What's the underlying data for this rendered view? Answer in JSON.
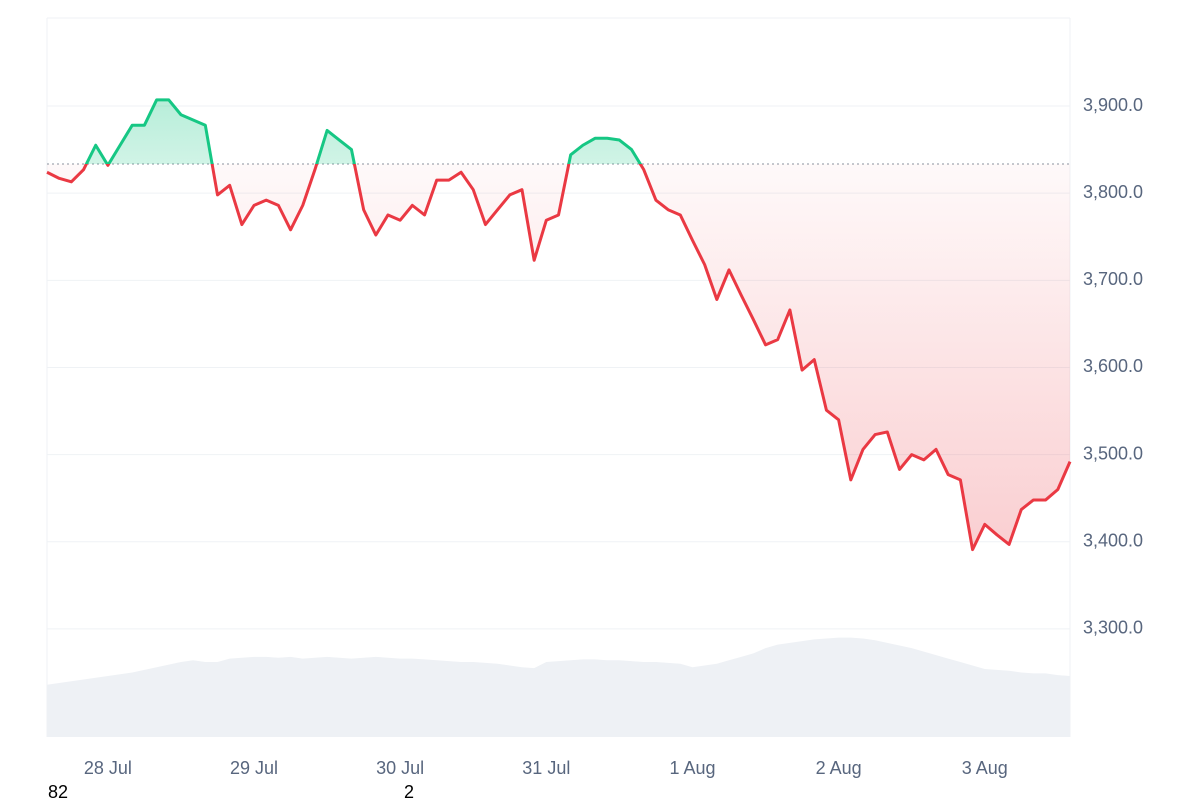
{
  "chart_data": {
    "type": "line",
    "ylim": [
      3176,
      4001
    ],
    "yticks": [
      {
        "value": 3300,
        "label": "3,300.0"
      },
      {
        "value": 3400,
        "label": "3,400.0"
      },
      {
        "value": 3500,
        "label": "3,500.0"
      },
      {
        "value": 3600,
        "label": "3,600.0"
      },
      {
        "value": 3700,
        "label": "3,700.0"
      },
      {
        "value": 3800,
        "label": "3,800.0"
      },
      {
        "value": 3900,
        "label": "3,900.0"
      }
    ],
    "grid": true,
    "baseline": 3833.5,
    "colors": {
      "above": "#16c784",
      "below": "#ea3943"
    },
    "categories": [
      null,
      null,
      null,
      null,
      null,
      "28 Jul",
      null,
      null,
      null,
      null,
      null,
      null,
      null,
      null,
      null,
      null,
      null,
      "29 Jul",
      null,
      null,
      null,
      null,
      null,
      null,
      null,
      null,
      null,
      null,
      null,
      "30 Jul",
      null,
      null,
      null,
      null,
      null,
      null,
      null,
      null,
      null,
      null,
      null,
      "31 Jul",
      null,
      null,
      null,
      null,
      null,
      null,
      null,
      null,
      null,
      null,
      null,
      "1 Aug",
      null,
      null,
      null,
      null,
      null,
      null,
      null,
      null,
      null,
      null,
      null,
      "2 Aug",
      null,
      null,
      null,
      null,
      null,
      null,
      null,
      null,
      null,
      null,
      null,
      "3 Aug",
      null,
      null,
      null,
      null,
      null,
      null,
      null
    ],
    "series": [
      {
        "values": [
          3824,
          3817,
          3813,
          3827,
          3855,
          3832,
          3855,
          3878,
          3878,
          3907,
          3907,
          3890,
          3884,
          3878,
          3798,
          3809,
          3764,
          3786,
          3792,
          3786,
          3758,
          3786,
          3827,
          3872,
          3861,
          3850,
          3781,
          3752,
          3775,
          3769,
          3786,
          3775,
          3815,
          3815,
          3824,
          3804,
          3764,
          3781,
          3798,
          3804,
          3723,
          3769,
          3775,
          3844,
          3855,
          3863,
          3863,
          3861,
          3850,
          3827,
          3792,
          3781,
          3775,
          3746,
          3718,
          3678,
          3712,
          3683,
          3655,
          3626,
          3632,
          3666,
          3597,
          3609,
          3551,
          3540,
          3471,
          3506,
          3523,
          3526,
          3483,
          3500,
          3494,
          3506,
          3477,
          3471,
          3391,
          3420,
          3408,
          3397,
          3437,
          3448,
          3448,
          3460,
          3492
        ]
      },
      {
        "color": "#eef1f5",
        "values": [
          3236,
          3238,
          3240,
          3242,
          3244,
          3246,
          3248,
          3250,
          3253,
          3256,
          3259,
          3262,
          3264,
          3262,
          3262,
          3266,
          3267,
          3268,
          3268,
          3267,
          3268,
          3266,
          3267,
          3268,
          3267,
          3266,
          3267,
          3268,
          3267,
          3266,
          3266,
          3265,
          3264,
          3263,
          3262,
          3262,
          3261,
          3260,
          3258,
          3256,
          3255,
          3262,
          3263,
          3264,
          3265,
          3265,
          3264,
          3264,
          3263,
          3262,
          3262,
          3261,
          3260,
          3256,
          3258,
          3260,
          3264,
          3268,
          3272,
          3278,
          3282,
          3284,
          3286,
          3288,
          3289,
          3290,
          3290,
          3289,
          3287,
          3284,
          3281,
          3278,
          3274,
          3270,
          3266,
          3262,
          3258,
          3254,
          3253,
          3252,
          3250,
          3249,
          3249,
          3247,
          3246
        ]
      }
    ]
  },
  "footer": [
    "82",
    "2"
  ]
}
